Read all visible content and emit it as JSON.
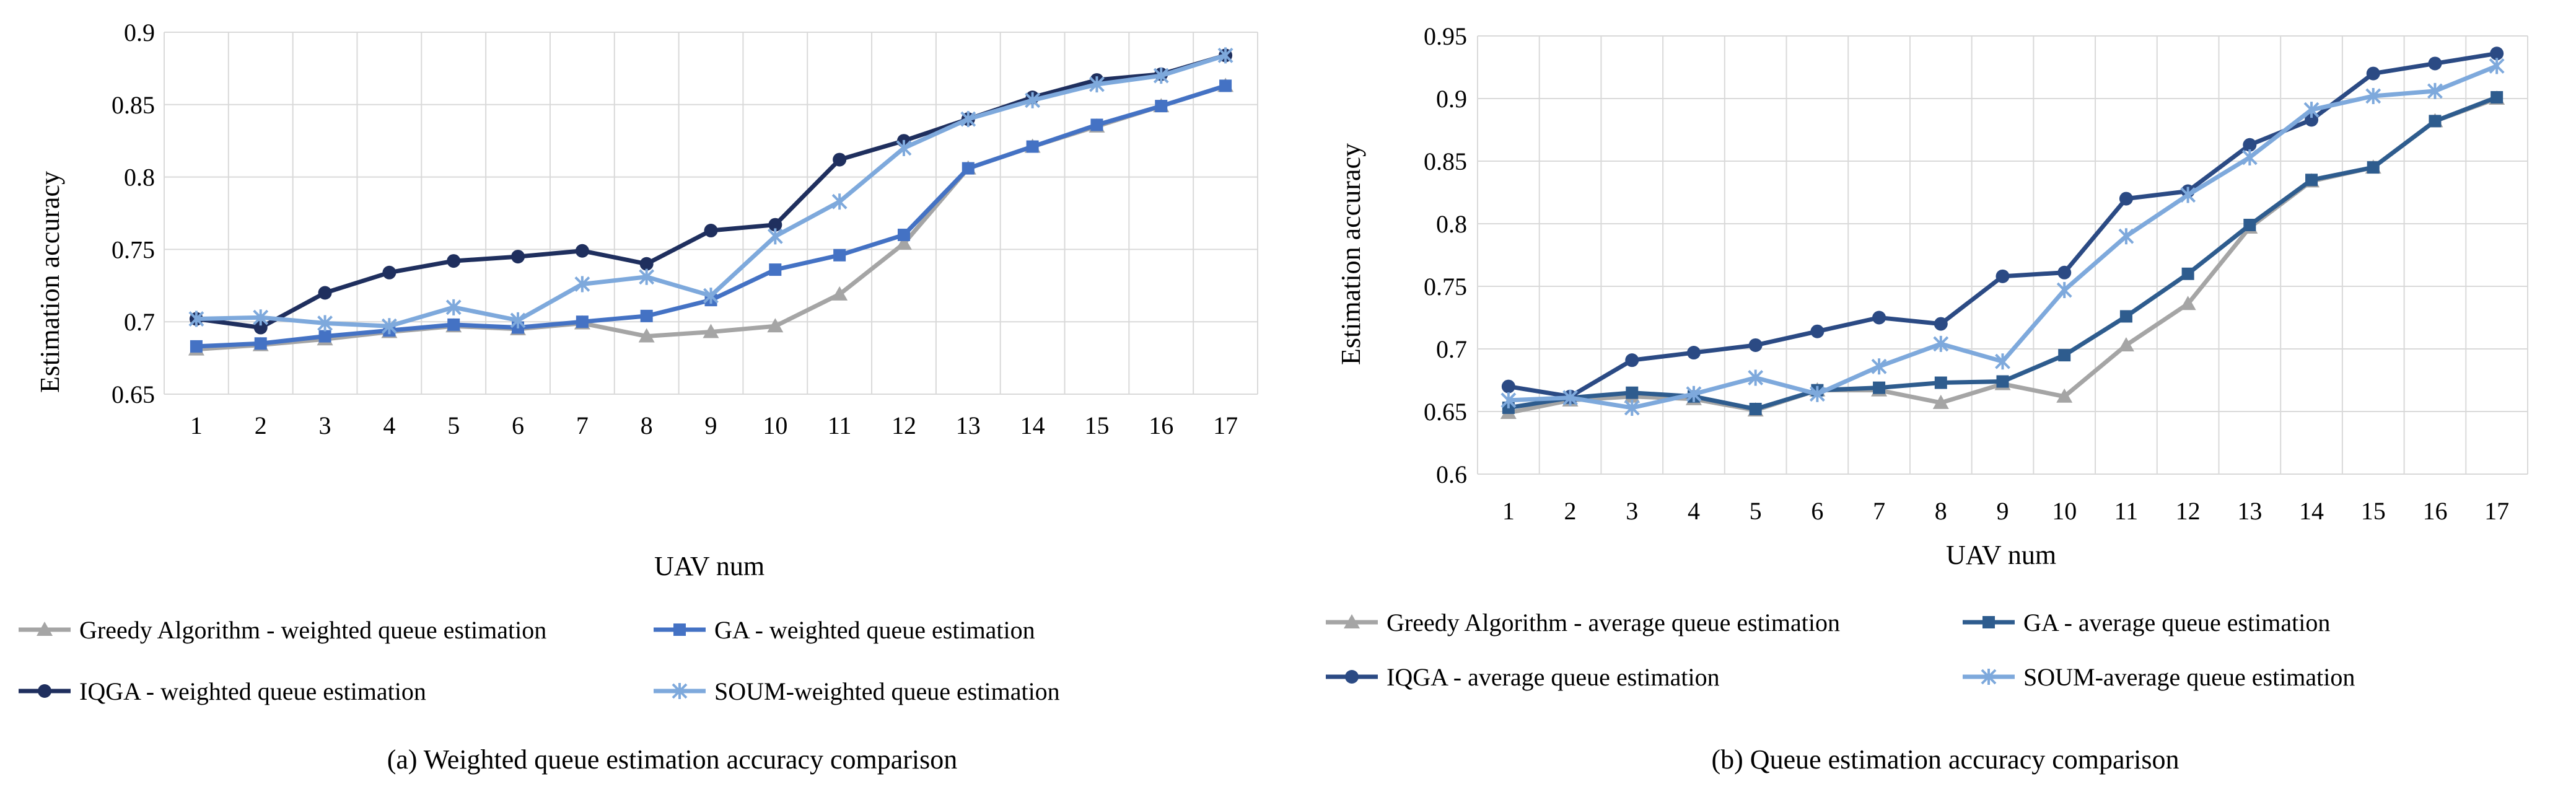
{
  "chart_data": [
    {
      "type": "line",
      "ylabel": "Estimation accuracy",
      "xlabel": "UAV num",
      "caption": "(a) Weighted queue estimation accuracy comparison",
      "categories": [
        "1",
        "2",
        "3",
        "4",
        "5",
        "6",
        "7",
        "8",
        "9",
        "10",
        "11",
        "12",
        "13",
        "14",
        "15",
        "16",
        "17"
      ],
      "ylim": [
        0.65,
        0.9
      ],
      "yticks": [
        0.65,
        0.7,
        0.75,
        0.8,
        0.85,
        0.9
      ],
      "ytick_labels": [
        "0.65",
        "0.7",
        "0.75",
        "0.8",
        "0.85",
        "0.9"
      ],
      "grid": true,
      "legend": "bottom",
      "series": [
        {
          "name": "Greedy Algorithm -  weighted queue estimation",
          "color": "#a5a5a5",
          "marker": "triangle",
          "values": [
            0.681,
            0.684,
            0.688,
            0.693,
            0.697,
            0.695,
            0.699,
            0.69,
            0.693,
            0.697,
            0.719,
            0.754,
            0.806,
            0.821,
            0.835,
            0.849,
            0.863
          ]
        },
        {
          "name": "GA -  weighted queue estimation",
          "color": "#4472c4",
          "marker": "square",
          "values": [
            0.683,
            0.685,
            0.69,
            0.694,
            0.698,
            0.696,
            0.7,
            0.704,
            0.715,
            0.736,
            0.746,
            0.76,
            0.806,
            0.821,
            0.836,
            0.849,
            0.863
          ]
        },
        {
          "name": "IQGA -  weighted queue estimation",
          "color": "#1f2f5e",
          "marker": "circle",
          "values": [
            0.702,
            0.696,
            0.72,
            0.734,
            0.742,
            0.745,
            0.749,
            0.74,
            0.763,
            0.767,
            0.812,
            0.825,
            0.84,
            0.855,
            0.867,
            0.871,
            0.884
          ]
        },
        {
          "name": "SOUM-weighted queue estimation",
          "color": "#7ea9dc",
          "marker": "star",
          "values": [
            0.702,
            0.703,
            0.699,
            0.697,
            0.71,
            0.701,
            0.726,
            0.731,
            0.718,
            0.759,
            0.783,
            0.82,
            0.84,
            0.853,
            0.864,
            0.87,
            0.884
          ]
        }
      ]
    },
    {
      "type": "line",
      "ylabel": "Estimation accuracy",
      "xlabel": "UAV num",
      "caption": "(b) Queue estimation accuracy comparison",
      "categories": [
        "1",
        "2",
        "3",
        "4",
        "5",
        "6",
        "7",
        "8",
        "9",
        "10",
        "11",
        "12",
        "13",
        "14",
        "15",
        "16",
        "17"
      ],
      "ylim": [
        0.6,
        0.95
      ],
      "yticks": [
        0.6,
        0.65,
        0.7,
        0.75,
        0.8,
        0.85,
        0.9,
        0.95
      ],
      "ytick_labels": [
        "0.6",
        "0.65",
        "0.7",
        "0.75",
        "0.8",
        "0.85",
        "0.9",
        "0.95"
      ],
      "grid": true,
      "legend": "bottom",
      "series": [
        {
          "name": "Greedy Algorithm -  average queue estimation",
          "color": "#a5a5a5",
          "marker": "triangle",
          "values": [
            0.649,
            0.659,
            0.662,
            0.66,
            0.651,
            0.667,
            0.667,
            0.657,
            0.672,
            0.662,
            0.703,
            0.736,
            0.797,
            0.834,
            0.845,
            0.882,
            0.9
          ]
        },
        {
          "name": "GA -  average queue estimation",
          "color": "#2e5c8e",
          "marker": "square",
          "values": [
            0.653,
            0.661,
            0.665,
            0.662,
            0.652,
            0.667,
            0.669,
            0.673,
            0.674,
            0.695,
            0.726,
            0.76,
            0.799,
            0.835,
            0.845,
            0.882,
            0.901
          ]
        },
        {
          "name": "IQGA -  average queue estimation",
          "color": "#2b4a84",
          "marker": "circle",
          "values": [
            0.67,
            0.662,
            0.691,
            0.697,
            0.703,
            0.714,
            0.725,
            0.72,
            0.758,
            0.761,
            0.82,
            0.826,
            0.863,
            0.883,
            0.92,
            0.928,
            0.936
          ]
        },
        {
          "name": "SOUM-average queue estimation",
          "color": "#7ea9dc",
          "marker": "star",
          "values": [
            0.659,
            0.661,
            0.653,
            0.664,
            0.677,
            0.664,
            0.686,
            0.704,
            0.69,
            0.747,
            0.79,
            0.823,
            0.853,
            0.891,
            0.902,
            0.906,
            0.926
          ]
        }
      ]
    }
  ]
}
